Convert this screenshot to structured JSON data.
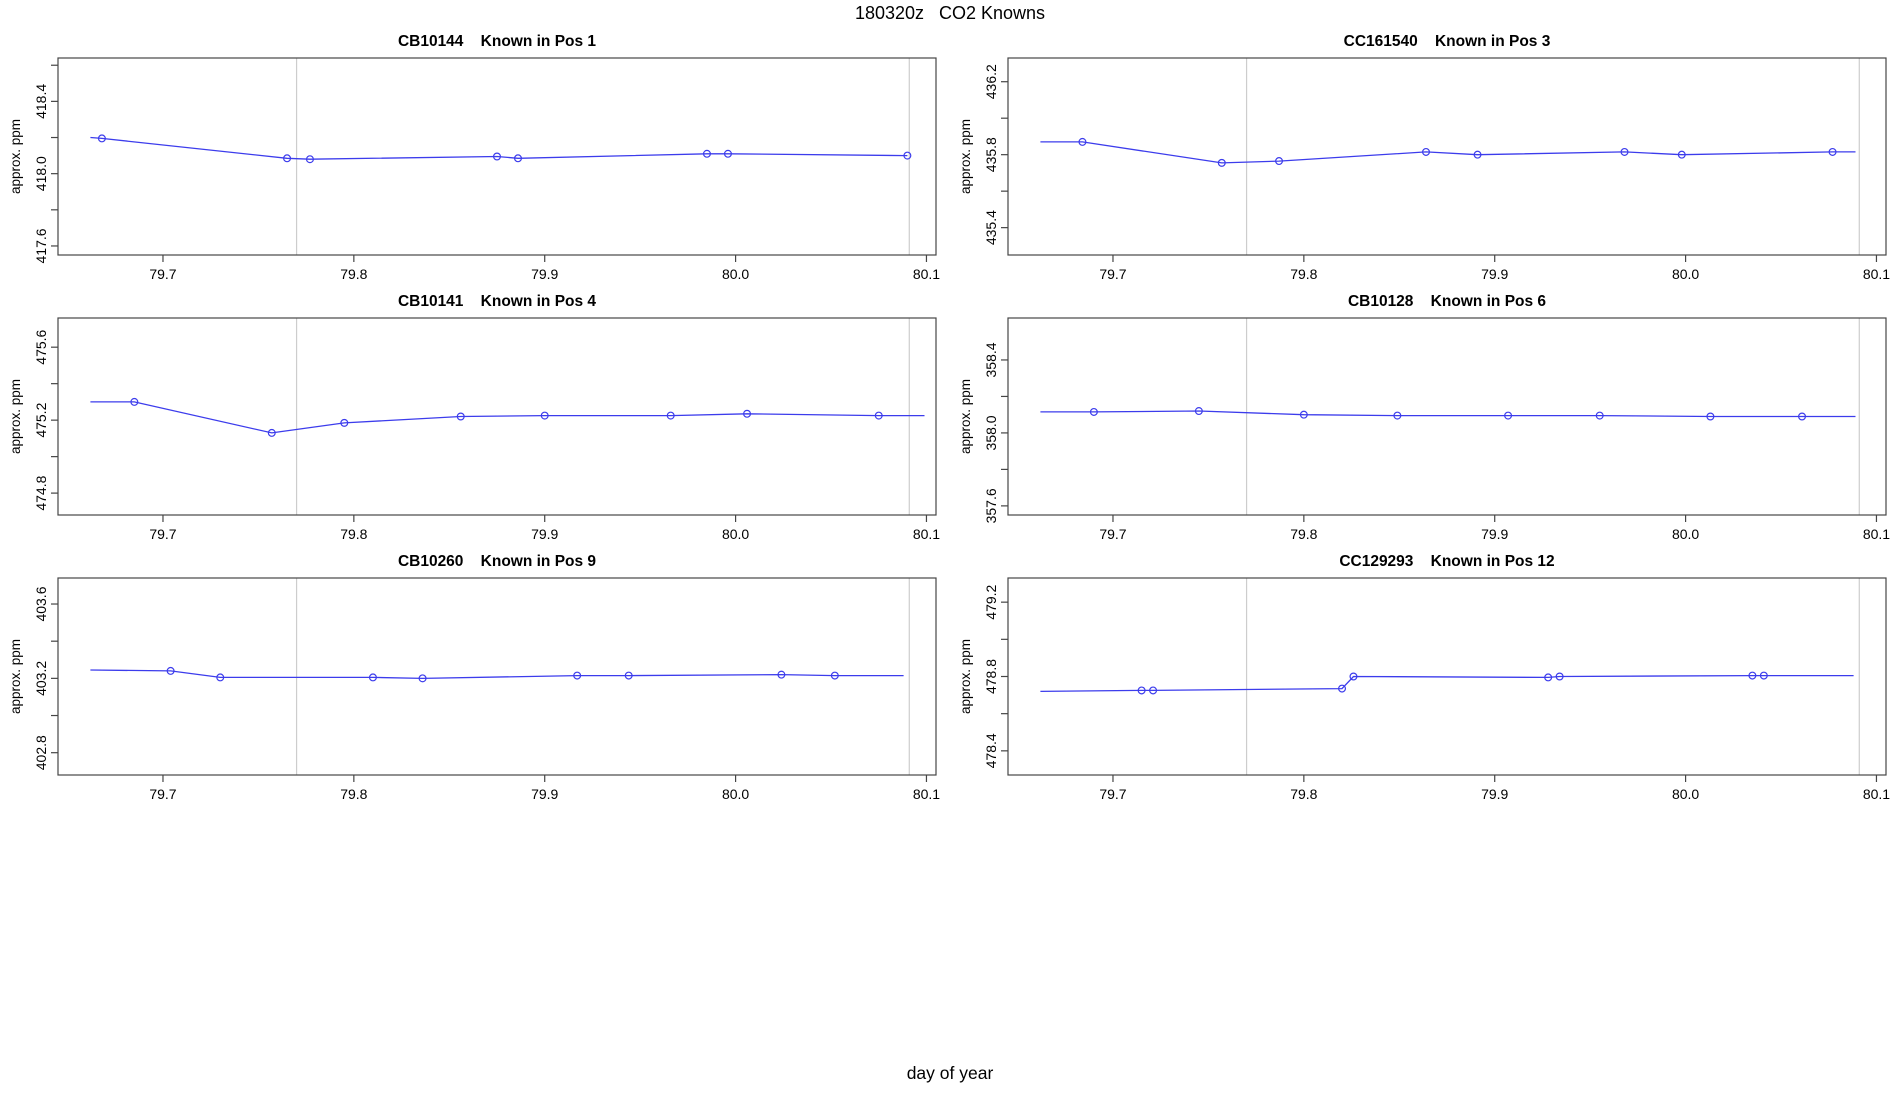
{
  "figure": {
    "title": "180320z   CO2 Knowns",
    "xlabel": "day of year"
  },
  "colors": {
    "series": "#3c3cec",
    "grid": "#cdcdcd",
    "axis": "#454545",
    "background": "#ffffff"
  },
  "chart_data": [
    {
      "type": "line",
      "title": "CB10144    Known in Pos 1",
      "ylabel": "approx. ppm",
      "xlim": [
        79.645,
        80.105
      ],
      "ylim": [
        417.55,
        418.64
      ],
      "xticks": [
        79.7,
        79.8,
        79.9,
        80.0,
        80.1
      ],
      "yticks": [
        417.6,
        417.8,
        418.0,
        418.2,
        418.4,
        418.6
      ],
      "ytick_labels": [
        417.6,
        418.0,
        418.4
      ],
      "vlines": [
        79.77,
        80.091
      ],
      "line": [
        [
          79.662,
          418.2
        ],
        [
          79.668,
          418.195
        ],
        [
          79.765,
          418.085
        ],
        [
          79.777,
          418.08
        ],
        [
          79.875,
          418.095
        ],
        [
          79.886,
          418.085
        ],
        [
          79.985,
          418.11
        ],
        [
          79.996,
          418.11
        ],
        [
          80.09,
          418.1
        ]
      ],
      "points": [
        [
          79.668,
          418.195
        ],
        [
          79.765,
          418.085
        ],
        [
          79.777,
          418.08
        ],
        [
          79.875,
          418.095
        ],
        [
          79.886,
          418.085
        ],
        [
          79.985,
          418.11
        ],
        [
          79.996,
          418.11
        ],
        [
          80.09,
          418.1
        ]
      ]
    },
    {
      "type": "line",
      "title": "CC161540    Known in Pos 3",
      "ylabel": "approx. ppm",
      "xlim": [
        79.645,
        80.105
      ],
      "ylim": [
        435.25,
        436.33
      ],
      "xticks": [
        79.7,
        79.8,
        79.9,
        80.0,
        80.1
      ],
      "yticks": [
        435.4,
        435.6,
        435.8,
        436.0,
        436.2
      ],
      "ytick_labels": [
        435.4,
        435.8,
        436.2
      ],
      "vlines": [
        79.77,
        80.091
      ],
      "line": [
        [
          79.662,
          435.87
        ],
        [
          79.684,
          435.87
        ],
        [
          79.757,
          435.755
        ],
        [
          79.787,
          435.765
        ],
        [
          79.864,
          435.815
        ],
        [
          79.891,
          435.8
        ],
        [
          79.968,
          435.815
        ],
        [
          79.998,
          435.8
        ],
        [
          80.077,
          435.815
        ],
        [
          80.089,
          435.815
        ]
      ],
      "points": [
        [
          79.684,
          435.87
        ],
        [
          79.757,
          435.755
        ],
        [
          79.787,
          435.765
        ],
        [
          79.864,
          435.815
        ],
        [
          79.891,
          435.8
        ],
        [
          79.968,
          435.815
        ],
        [
          79.998,
          435.8
        ],
        [
          80.077,
          435.815
        ]
      ]
    },
    {
      "type": "line",
      "title": "CB10141    Known in Pos 4",
      "ylabel": "approx. ppm",
      "xlim": [
        79.645,
        80.105
      ],
      "ylim": [
        474.68,
        475.76
      ],
      "xticks": [
        79.7,
        79.8,
        79.9,
        80.0,
        80.1
      ],
      "yticks": [
        474.8,
        475.0,
        475.2,
        475.4,
        475.6
      ],
      "ytick_labels": [
        474.8,
        475.2,
        475.6
      ],
      "vlines": [
        79.77,
        80.091
      ],
      "line": [
        [
          79.662,
          475.3
        ],
        [
          79.685,
          475.3
        ],
        [
          79.757,
          475.13
        ],
        [
          79.795,
          475.185
        ],
        [
          79.856,
          475.22
        ],
        [
          79.9,
          475.225
        ],
        [
          79.966,
          475.225
        ],
        [
          80.006,
          475.235
        ],
        [
          80.075,
          475.225
        ],
        [
          80.099,
          475.225
        ]
      ],
      "points": [
        [
          79.685,
          475.3
        ],
        [
          79.757,
          475.13
        ],
        [
          79.795,
          475.185
        ],
        [
          79.856,
          475.22
        ],
        [
          79.9,
          475.225
        ],
        [
          79.966,
          475.225
        ],
        [
          80.006,
          475.235
        ],
        [
          80.075,
          475.225
        ]
      ]
    },
    {
      "type": "line",
      "title": "CB10128    Known in Pos 6",
      "ylabel": "approx. ppm",
      "xlim": [
        79.645,
        80.105
      ],
      "ylim": [
        357.55,
        358.63
      ],
      "xticks": [
        79.7,
        79.8,
        79.9,
        80.0,
        80.1
      ],
      "yticks": [
        357.6,
        357.8,
        358.0,
        358.2,
        358.4
      ],
      "ytick_labels": [
        357.6,
        358.0,
        358.4
      ],
      "vlines": [
        79.77,
        80.091
      ],
      "line": [
        [
          79.662,
          358.115
        ],
        [
          79.69,
          358.115
        ],
        [
          79.745,
          358.12
        ],
        [
          79.8,
          358.1
        ],
        [
          79.849,
          358.095
        ],
        [
          79.907,
          358.095
        ],
        [
          79.955,
          358.095
        ],
        [
          80.013,
          358.09
        ],
        [
          80.061,
          358.09
        ],
        [
          80.089,
          358.09
        ]
      ],
      "points": [
        [
          79.69,
          358.115
        ],
        [
          79.745,
          358.12
        ],
        [
          79.8,
          358.1
        ],
        [
          79.849,
          358.095
        ],
        [
          79.907,
          358.095
        ],
        [
          79.955,
          358.095
        ],
        [
          80.013,
          358.09
        ],
        [
          80.061,
          358.09
        ]
      ]
    },
    {
      "type": "line",
      "title": "CB10260    Known in Pos 9",
      "ylabel": "approx. ppm",
      "xlim": [
        79.645,
        80.105
      ],
      "ylim": [
        402.68,
        403.74
      ],
      "xticks": [
        79.7,
        79.8,
        79.9,
        80.0,
        80.1
      ],
      "yticks": [
        402.8,
        403.0,
        403.2,
        403.4,
        403.6
      ],
      "ytick_labels": [
        402.8,
        403.2,
        403.6
      ],
      "vlines": [
        79.77,
        80.091
      ],
      "line": [
        [
          79.662,
          403.245
        ],
        [
          79.704,
          403.24
        ],
        [
          79.73,
          403.205
        ],
        [
          79.81,
          403.205
        ],
        [
          79.836,
          403.2
        ],
        [
          79.917,
          403.215
        ],
        [
          79.944,
          403.215
        ],
        [
          80.024,
          403.22
        ],
        [
          80.052,
          403.215
        ],
        [
          80.088,
          403.215
        ]
      ],
      "points": [
        [
          79.704,
          403.24
        ],
        [
          79.73,
          403.205
        ],
        [
          79.81,
          403.205
        ],
        [
          79.836,
          403.2
        ],
        [
          79.917,
          403.215
        ],
        [
          79.944,
          403.215
        ],
        [
          80.024,
          403.22
        ],
        [
          80.052,
          403.215
        ]
      ]
    },
    {
      "type": "line",
      "title": "CC129293    Known in Pos 12",
      "ylabel": "approx. ppm",
      "xlim": [
        79.645,
        80.105
      ],
      "ylim": [
        478.27,
        479.33
      ],
      "xticks": [
        79.7,
        79.8,
        79.9,
        80.0,
        80.1
      ],
      "yticks": [
        478.4,
        478.6,
        478.8,
        479.0,
        479.2
      ],
      "ytick_labels": [
        478.4,
        478.8,
        479.2
      ],
      "vlines": [
        79.77,
        80.091
      ],
      "line": [
        [
          79.662,
          478.72
        ],
        [
          79.715,
          478.725
        ],
        [
          79.721,
          478.725
        ],
        [
          79.82,
          478.735
        ],
        [
          79.826,
          478.8
        ],
        [
          79.928,
          478.795
        ],
        [
          79.934,
          478.8
        ],
        [
          80.035,
          478.805
        ],
        [
          80.041,
          478.805
        ],
        [
          80.088,
          478.805
        ]
      ],
      "points": [
        [
          79.715,
          478.725
        ],
        [
          79.721,
          478.725
        ],
        [
          79.82,
          478.735
        ],
        [
          79.826,
          478.8
        ],
        [
          79.928,
          478.795
        ],
        [
          79.934,
          478.8
        ],
        [
          80.035,
          478.805
        ],
        [
          80.041,
          478.805
        ]
      ]
    }
  ]
}
